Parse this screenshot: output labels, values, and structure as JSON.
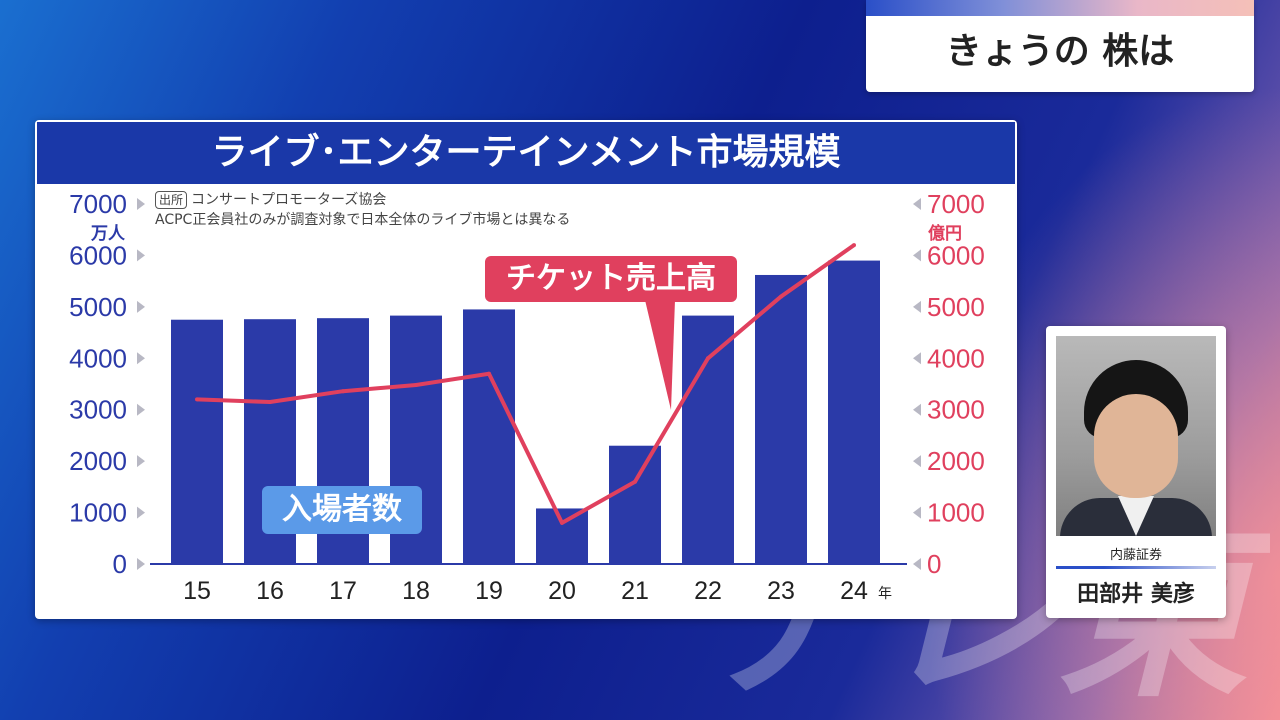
{
  "topic": {
    "title": "きょうの 株は"
  },
  "watermark": "テレ東",
  "guest": {
    "company": "内藤証券",
    "name": "田部井 美彦"
  },
  "chart_data": {
    "type": "bar+line",
    "title": "ライブ･エンターテインメント市場規模",
    "source_tag": "出所",
    "source": "コンサートプロモーターズ協会",
    "note": "ACPC正会員社のみが調査対象で日本全体のライブ市場とは異なる",
    "categories": [
      "15",
      "16",
      "17",
      "18",
      "19",
      "20",
      "21",
      "22",
      "23",
      "24"
    ],
    "x_suffix": "年",
    "y_left": {
      "unit": "万人",
      "ticks": [
        "0",
        "1000",
        "2000",
        "3000",
        "4000",
        "5000",
        "6000",
        "7000"
      ],
      "range": [
        0,
        7000
      ]
    },
    "y_right": {
      "unit": "億円",
      "ticks": [
        "0",
        "1000",
        "2000",
        "3000",
        "4000",
        "5000",
        "6000",
        "7000"
      ],
      "range": [
        0,
        7000
      ]
    },
    "series": [
      {
        "name": "入場者数",
        "type": "bar",
        "axis": "left",
        "color": "#2b3aa8",
        "values": [
          4750,
          4760,
          4780,
          4830,
          4950,
          1080,
          2300,
          4830,
          5620,
          5900
        ]
      },
      {
        "name": "チケット売上高",
        "type": "line",
        "axis": "right",
        "color": "#e0405e",
        "values": [
          3200,
          3150,
          3360,
          3480,
          3700,
          800,
          1600,
          4000,
          5200,
          6200
        ]
      }
    ],
    "grid": false
  }
}
